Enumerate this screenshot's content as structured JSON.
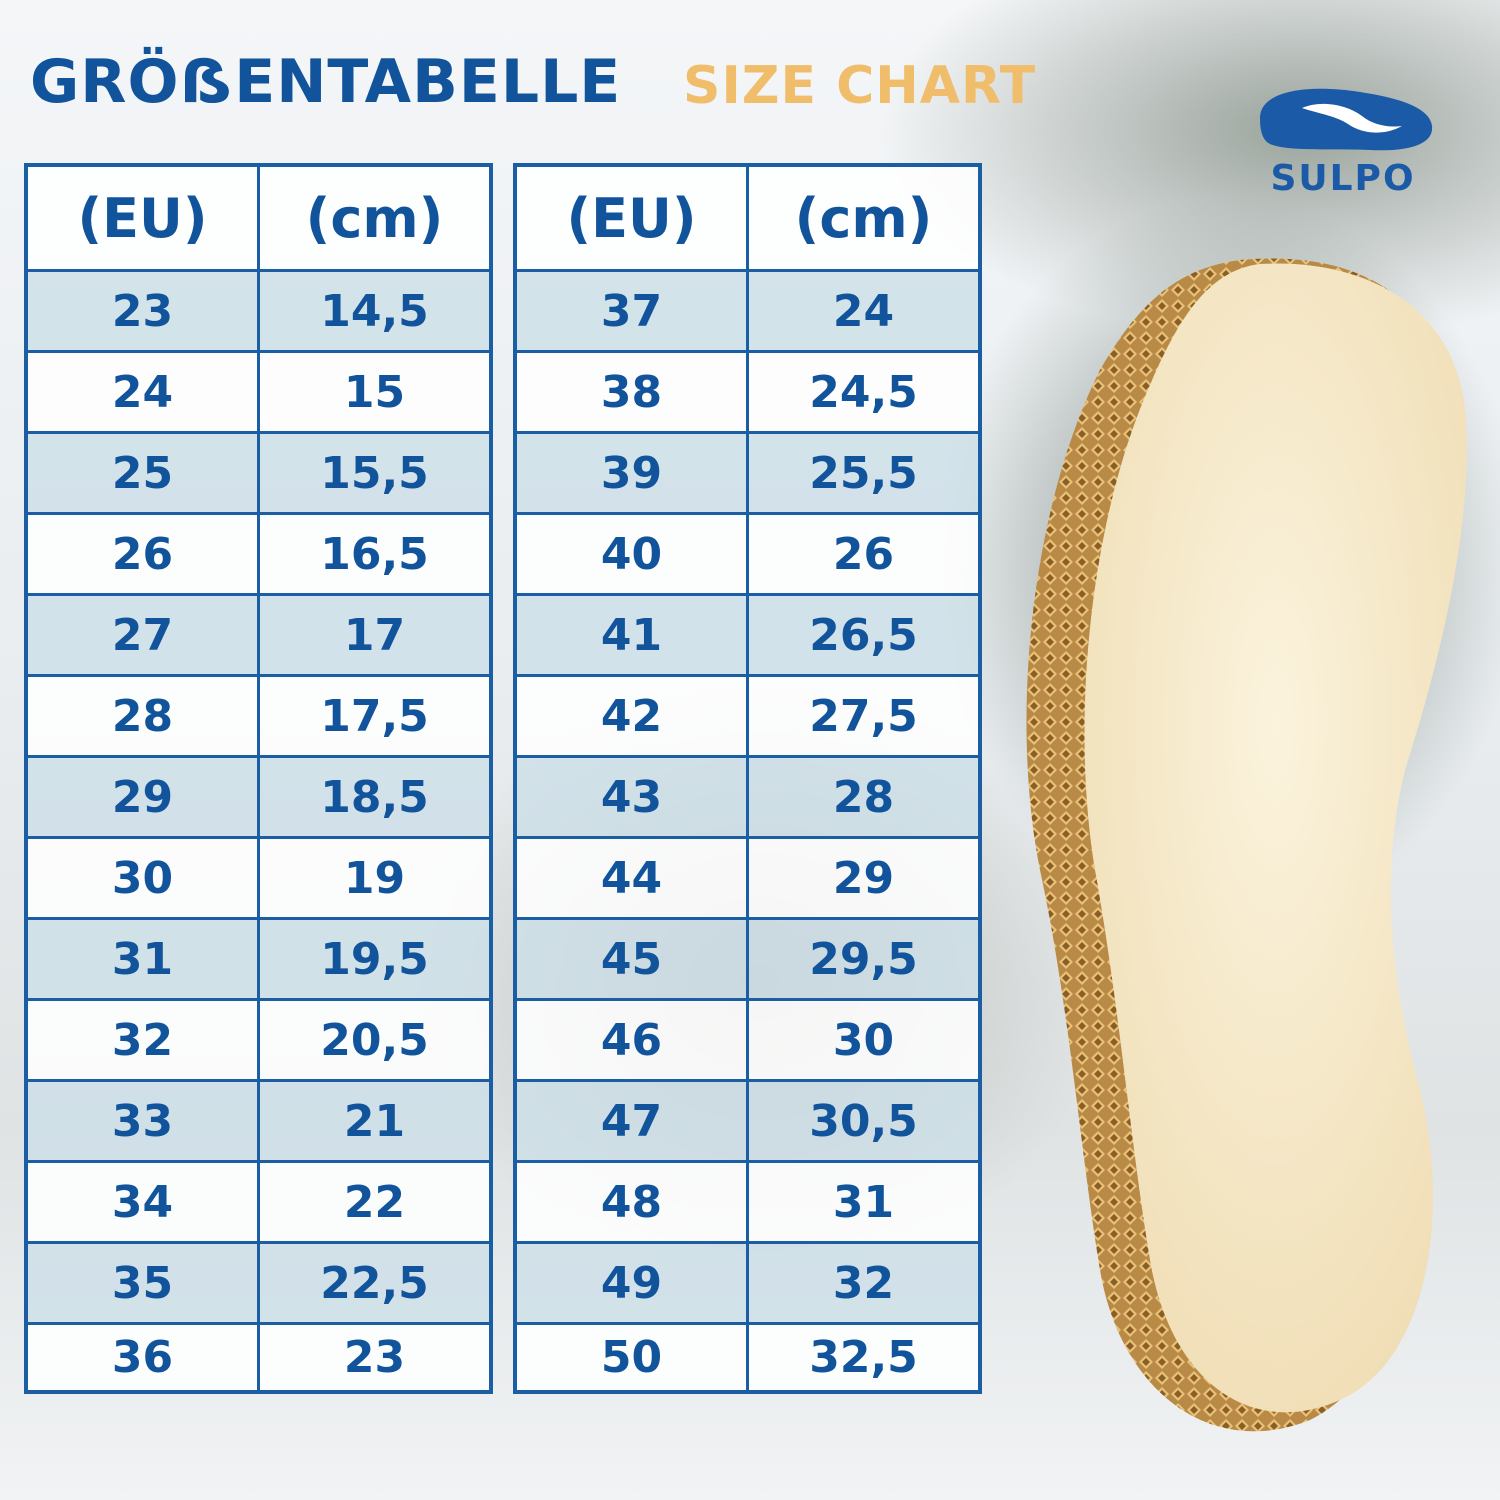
{
  "header": {
    "title_de": "GRÖẞENTABELLE",
    "title_en": "SIZE CHART"
  },
  "brand": {
    "name": "SULPO",
    "color": "#1a5aa6"
  },
  "colors": {
    "primary_blue": "#12549b",
    "accent_orange": "#f0bd6a"
  },
  "table": {
    "headers": [
      "(EU)",
      "(cm)"
    ],
    "left_rows": [
      [
        "23",
        "14,5"
      ],
      [
        "24",
        "15"
      ],
      [
        "25",
        "15,5"
      ],
      [
        "26",
        "16,5"
      ],
      [
        "27",
        "17"
      ],
      [
        "28",
        "17,5"
      ],
      [
        "29",
        "18,5"
      ],
      [
        "30",
        "19"
      ],
      [
        "31",
        "19,5"
      ],
      [
        "32",
        "20,5"
      ],
      [
        "33",
        "21"
      ],
      [
        "34",
        "22"
      ],
      [
        "35",
        "22,5"
      ],
      [
        "36",
        "23"
      ]
    ],
    "right_rows": [
      [
        "37",
        "24"
      ],
      [
        "38",
        "24,5"
      ],
      [
        "39",
        "25,5"
      ],
      [
        "40",
        "26"
      ],
      [
        "41",
        "26,5"
      ],
      [
        "42",
        "27,5"
      ],
      [
        "43",
        "28"
      ],
      [
        "44",
        "29"
      ],
      [
        "45",
        "29,5"
      ],
      [
        "46",
        "30"
      ],
      [
        "47",
        "30,5"
      ],
      [
        "48",
        "31"
      ],
      [
        "49",
        "32"
      ],
      [
        "50",
        "32,5"
      ]
    ]
  },
  "images": {
    "background": "sheep-photo",
    "product": "wool-insole"
  }
}
